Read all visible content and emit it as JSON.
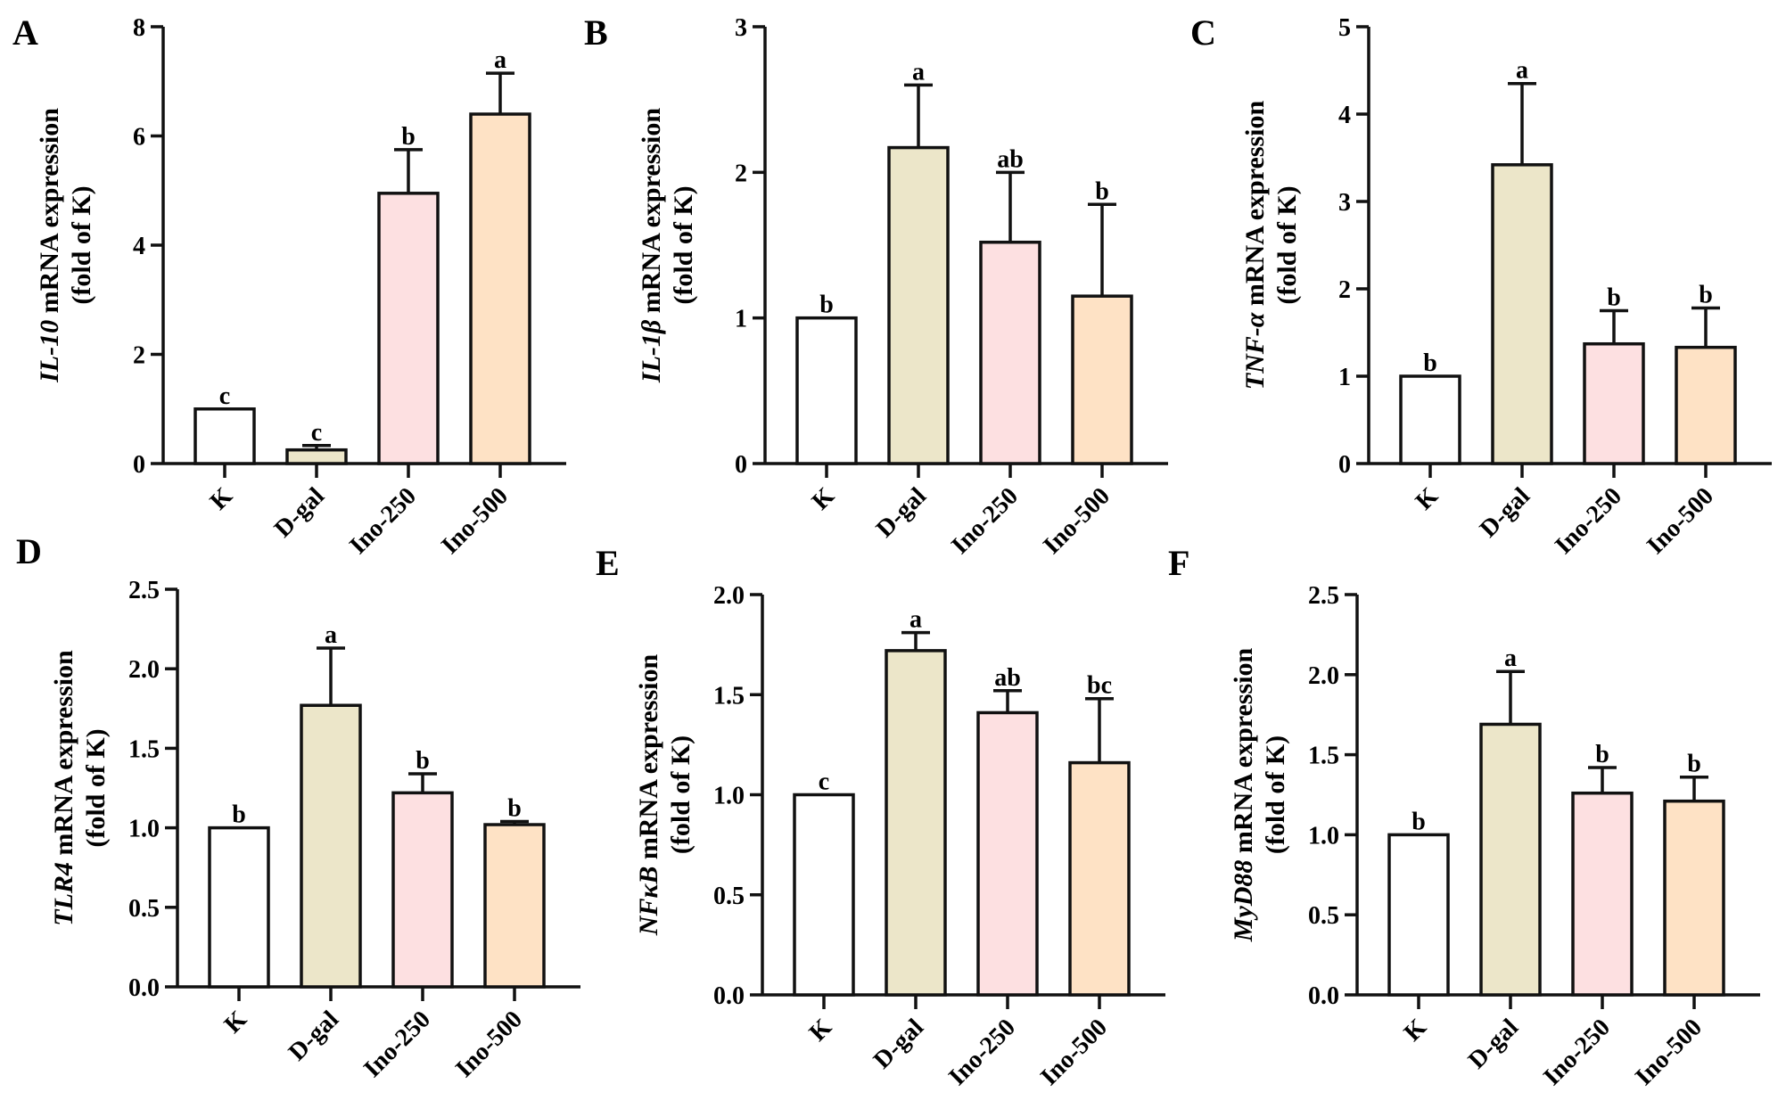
{
  "chart_data": [
    {
      "panel": "A",
      "type": "bar",
      "gene": "IL-10",
      "ylabel_suffix": " mRNA expression",
      "ylabel_line2": "(fold of K)",
      "categories": [
        "K",
        "D-gal",
        "Ino-250",
        "Ino-500"
      ],
      "values": [
        1.0,
        0.25,
        4.95,
        6.4
      ],
      "error_upper": [
        1.0,
        0.33,
        5.75,
        7.15
      ],
      "letters": [
        "c",
        "c",
        "b",
        "a"
      ],
      "ylim": [
        0,
        8
      ],
      "yticks": [
        "0",
        "2",
        "4",
        "6",
        "8"
      ],
      "tickvals": [
        0,
        2,
        4,
        6,
        8
      ]
    },
    {
      "panel": "B",
      "type": "bar",
      "gene": "IL-1β",
      "ylabel_suffix": " mRNA expression",
      "ylabel_line2": "(fold of K)",
      "categories": [
        "K",
        "D-gal",
        "Ino-250",
        "Ino-500"
      ],
      "values": [
        1.0,
        2.17,
        1.52,
        1.15
      ],
      "error_upper": [
        1.0,
        2.6,
        2.0,
        1.78
      ],
      "letters": [
        "b",
        "a",
        "ab",
        "b"
      ],
      "ylim": [
        0,
        3
      ],
      "yticks": [
        "0",
        "1",
        "2",
        "3"
      ],
      "tickvals": [
        0,
        1,
        2,
        3
      ]
    },
    {
      "panel": "C",
      "type": "bar",
      "gene": "TNF-α",
      "ylabel_suffix": " mRNA expression",
      "ylabel_line2": "(fold of K)",
      "categories": [
        "K",
        "D-gal",
        "Ino-250",
        "Ino-500"
      ],
      "values": [
        1.0,
        3.42,
        1.37,
        1.33
      ],
      "error_upper": [
        1.0,
        4.35,
        1.75,
        1.78
      ],
      "letters": [
        "b",
        "a",
        "b",
        "b"
      ],
      "ylim": [
        0,
        5
      ],
      "yticks": [
        "0",
        "1",
        "2",
        "3",
        "4",
        "5"
      ],
      "tickvals": [
        0,
        1,
        2,
        3,
        4,
        5
      ]
    },
    {
      "panel": "D",
      "type": "bar",
      "gene": "TLR4",
      "ylabel_suffix": " mRNA expression",
      "ylabel_line2": "(fold of K)",
      "categories": [
        "K",
        "D-gal",
        "Ino-250",
        "Ino-500"
      ],
      "values": [
        1.0,
        1.77,
        1.22,
        1.02
      ],
      "error_upper": [
        1.0,
        2.13,
        1.34,
        1.04
      ],
      "letters": [
        "b",
        "a",
        "b",
        "b"
      ],
      "ylim": [
        0,
        2.5
      ],
      "yticks": [
        "0.0",
        "0.5",
        "1.0",
        "1.5",
        "2.0",
        "2.5"
      ],
      "tickvals": [
        0,
        0.5,
        1,
        1.5,
        2,
        2.5
      ]
    },
    {
      "panel": "E",
      "type": "bar",
      "gene": "NFκB",
      "ylabel_suffix": " mRNA expression",
      "ylabel_line2": "(fold of K)",
      "categories": [
        "K",
        "D-gal",
        "Ino-250",
        "Ino-500"
      ],
      "values": [
        1.0,
        1.72,
        1.41,
        1.16
      ],
      "error_upper": [
        1.0,
        1.81,
        1.52,
        1.48
      ],
      "letters": [
        "c",
        "a",
        "ab",
        "bc"
      ],
      "ylim": [
        0,
        2.0
      ],
      "yticks": [
        "0.0",
        "0.5",
        "1.0",
        "1.5",
        "2.0"
      ],
      "tickvals": [
        0,
        0.5,
        1,
        1.5,
        2
      ]
    },
    {
      "panel": "F",
      "type": "bar",
      "gene": "MyD88",
      "ylabel_suffix": " mRNA expression",
      "ylabel_line2": "(fold of K)",
      "categories": [
        "K",
        "D-gal",
        "Ino-250",
        "Ino-500"
      ],
      "values": [
        1.0,
        1.69,
        1.26,
        1.21
      ],
      "error_upper": [
        1.0,
        2.02,
        1.42,
        1.36
      ],
      "letters": [
        "b",
        "a",
        "b",
        "b"
      ],
      "ylim": [
        0,
        2.5
      ],
      "yticks": [
        "0.0",
        "0.5",
        "1.0",
        "1.5",
        "2.0",
        "2.5"
      ],
      "tickvals": [
        0,
        0.5,
        1,
        1.5,
        2,
        2.5
      ]
    }
  ],
  "colors": {
    "K": "#ffffff",
    "D-gal": "#ece6c9",
    "Ino-250": "#fde0e1",
    "Ino-500": "#fee2c5",
    "stroke": "#111111"
  }
}
